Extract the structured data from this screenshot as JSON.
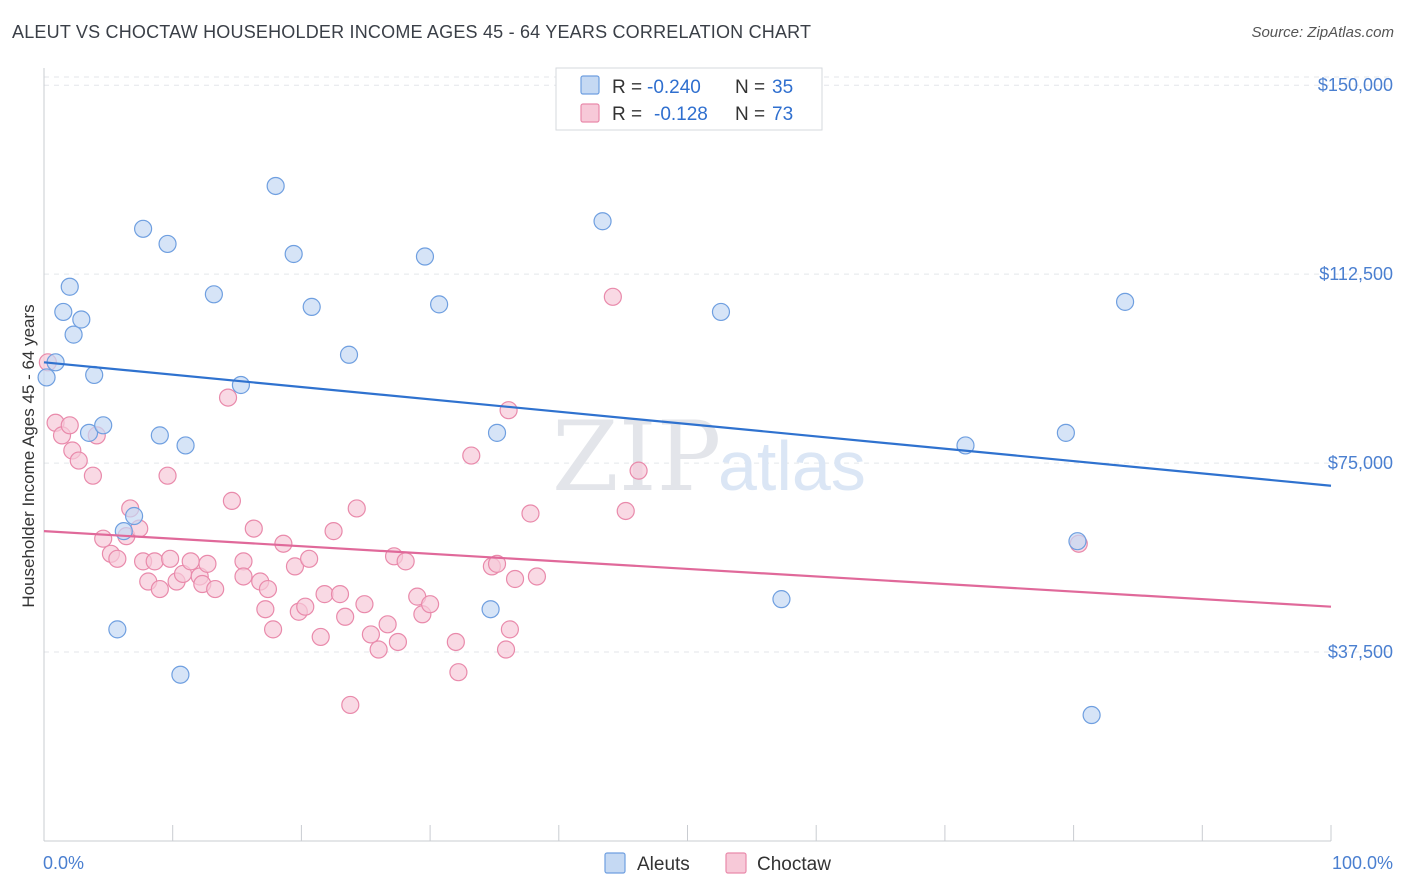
{
  "title": "ALEUT VS CHOCTAW HOUSEHOLDER INCOME AGES 45 - 64 YEARS CORRELATION CHART",
  "source": "Source: ZipAtlas.com",
  "watermark": {
    "zip": "ZIP",
    "atlas": "atlas"
  },
  "colors": {
    "aleut_fill": "#c5d9f3",
    "aleut_stroke": "#6f9fe0",
    "aleut_line": "#2f72cf",
    "choctaw_fill": "#f7c9d8",
    "choctaw_stroke": "#e98aab",
    "choctaw_line": "#e0699a",
    "grid": "#e3e6ea",
    "axis_text": "#4a7fd0"
  },
  "legend": {
    "rows": [
      {
        "r_label": "R =",
        "r_value": "-0.240",
        "n_label": "N =",
        "n_value": "35"
      },
      {
        "r_label": "R =",
        "r_value": "-0.128",
        "n_label": "N =",
        "n_value": "73"
      }
    ]
  },
  "chart_data": {
    "type": "scatter",
    "title": "ALEUT VS CHOCTAW HOUSEHOLDER INCOME AGES 45 - 64 YEARS CORRELATION CHART",
    "xlabel": "",
    "ylabel": "Householder Income Ages 45 - 64 years",
    "xlim": [
      0,
      100
    ],
    "ylim": [
      0,
      155000
    ],
    "x_tick_labels": [
      "0.0%",
      "100.0%"
    ],
    "y_ticks": [
      37500,
      75000,
      112500,
      150000
    ],
    "y_tick_labels": [
      "$37,500",
      "$75,000",
      "$112,500",
      "$150,000"
    ],
    "grid": true,
    "legend_entries": [
      "Aleuts",
      "Choctaw"
    ],
    "series": [
      {
        "name": "Aleuts",
        "r": -0.24,
        "n": 35,
        "trend": {
          "x": [
            0,
            100
          ],
          "y": [
            95000,
            70500
          ]
        },
        "points": [
          [
            0.2,
            92000
          ],
          [
            0.9,
            95000
          ],
          [
            1.5,
            105000
          ],
          [
            2.0,
            110000
          ],
          [
            2.3,
            100500
          ],
          [
            2.9,
            103500
          ],
          [
            3.5,
            81000
          ],
          [
            3.9,
            92500
          ],
          [
            4.6,
            82500
          ],
          [
            5.7,
            42000
          ],
          [
            6.2,
            61500
          ],
          [
            7.0,
            64500
          ],
          [
            7.7,
            121500
          ],
          [
            9.0,
            80500
          ],
          [
            9.6,
            118500
          ],
          [
            10.6,
            33000
          ],
          [
            11.0,
            78500
          ],
          [
            13.2,
            108500
          ],
          [
            15.3,
            90500
          ],
          [
            18.0,
            130000
          ],
          [
            19.4,
            116500
          ],
          [
            20.8,
            106000
          ],
          [
            23.7,
            96500
          ],
          [
            29.6,
            116000
          ],
          [
            30.7,
            106500
          ],
          [
            34.7,
            46000
          ],
          [
            35.2,
            81000
          ],
          [
            43.4,
            123000
          ],
          [
            52.6,
            105000
          ],
          [
            57.3,
            48000
          ],
          [
            71.6,
            78500
          ],
          [
            79.4,
            81000
          ],
          [
            80.3,
            59500
          ],
          [
            81.4,
            25000
          ],
          [
            84.0,
            107000
          ]
        ]
      },
      {
        "name": "Choctaw",
        "r": -0.128,
        "n": 73,
        "trend": {
          "x": [
            0,
            100
          ],
          "y": [
            61500,
            46500
          ]
        },
        "points": [
          [
            0.3,
            95000
          ],
          [
            0.9,
            83000
          ],
          [
            1.4,
            80500
          ],
          [
            2.0,
            82500
          ],
          [
            2.2,
            77500
          ],
          [
            2.7,
            75500
          ],
          [
            3.8,
            72500
          ],
          [
            4.1,
            80500
          ],
          [
            4.6,
            60000
          ],
          [
            5.2,
            57000
          ],
          [
            5.7,
            56000
          ],
          [
            6.4,
            60500
          ],
          [
            6.7,
            66000
          ],
          [
            7.4,
            62000
          ],
          [
            7.7,
            55500
          ],
          [
            8.1,
            51500
          ],
          [
            8.6,
            55500
          ],
          [
            9.0,
            50000
          ],
          [
            9.6,
            72500
          ],
          [
            9.8,
            56000
          ],
          [
            10.3,
            51500
          ],
          [
            10.8,
            53000
          ],
          [
            11.4,
            55500
          ],
          [
            12.1,
            52500
          ],
          [
            12.3,
            51000
          ],
          [
            12.7,
            55000
          ],
          [
            13.3,
            50000
          ],
          [
            14.3,
            88000
          ],
          [
            14.6,
            67500
          ],
          [
            15.5,
            55500
          ],
          [
            15.5,
            52500
          ],
          [
            16.3,
            62000
          ],
          [
            16.8,
            51500
          ],
          [
            17.2,
            46000
          ],
          [
            17.4,
            50000
          ],
          [
            17.8,
            42000
          ],
          [
            18.6,
            59000
          ],
          [
            19.5,
            54500
          ],
          [
            19.8,
            45500
          ],
          [
            20.3,
            46500
          ],
          [
            20.6,
            56000
          ],
          [
            21.5,
            40500
          ],
          [
            21.8,
            49000
          ],
          [
            22.5,
            61500
          ],
          [
            23.0,
            49000
          ],
          [
            23.4,
            44500
          ],
          [
            23.8,
            27000
          ],
          [
            24.3,
            66000
          ],
          [
            24.9,
            47000
          ],
          [
            25.4,
            41000
          ],
          [
            26.0,
            38000
          ],
          [
            26.7,
            43000
          ],
          [
            27.2,
            56500
          ],
          [
            27.5,
            39500
          ],
          [
            28.1,
            55500
          ],
          [
            29.0,
            48500
          ],
          [
            29.4,
            45000
          ],
          [
            30.0,
            47000
          ],
          [
            32.0,
            39500
          ],
          [
            32.2,
            33500
          ],
          [
            33.2,
            76500
          ],
          [
            34.8,
            54500
          ],
          [
            35.9,
            38000
          ],
          [
            36.1,
            85500
          ],
          [
            36.6,
            52000
          ],
          [
            37.8,
            65000
          ],
          [
            38.3,
            52500
          ],
          [
            44.2,
            108000
          ],
          [
            45.2,
            65500
          ],
          [
            46.2,
            73500
          ],
          [
            35.2,
            55000
          ],
          [
            36.2,
            42000
          ],
          [
            80.4,
            59000
          ]
        ]
      }
    ]
  }
}
